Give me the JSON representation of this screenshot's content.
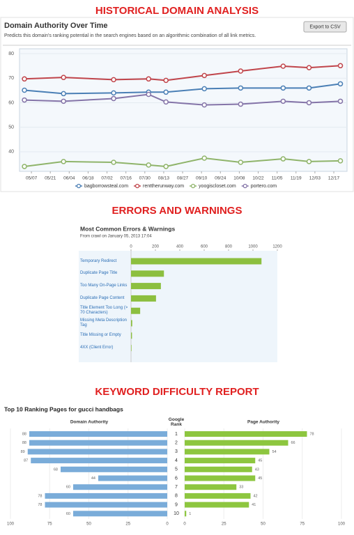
{
  "sections": [
    "HISTORICAL DOMAIN ANALYSIS",
    "ERRORS AND WARNINGS",
    "KEYWORD DIFFICULTY REPORT"
  ],
  "export_button": "Export to CSV",
  "chart_data": [
    {
      "type": "line",
      "title": "Domain Authority Over Time",
      "subtitle": "Predicts this domain's ranking potential in the search engines based on an algorithmic combination of all link metrics.",
      "x": [
        -0.37,
        1.7,
        4.35,
        6.2,
        7.12,
        9.15,
        11.07,
        13.32,
        14.69,
        16.35
      ],
      "xlim": [
        -0.63,
        16.7
      ],
      "xticks": [
        {
          "value": 0,
          "label": "05/07"
        },
        {
          "value": 1,
          "label": "05/21"
        },
        {
          "value": 2,
          "label": "06/04"
        },
        {
          "value": 3,
          "label": "06/18"
        },
        {
          "value": 4,
          "label": "07/02"
        },
        {
          "value": 5,
          "label": "07/16"
        },
        {
          "value": 6,
          "label": "07/30"
        },
        {
          "value": 7,
          "label": "08/13"
        },
        {
          "value": 8,
          "label": "08/27"
        },
        {
          "value": 9,
          "label": "09/10"
        },
        {
          "value": 10,
          "label": "09/24"
        },
        {
          "value": 11,
          "label": "10/08"
        },
        {
          "value": 12,
          "label": "10/22"
        },
        {
          "value": 13,
          "label": "11/05"
        },
        {
          "value": 14,
          "label": "11/19"
        },
        {
          "value": 15,
          "label": "12/03"
        },
        {
          "value": 16,
          "label": "12/17"
        }
      ],
      "ylim": [
        32,
        82
      ],
      "yticks": [
        40,
        50,
        60,
        70,
        80
      ],
      "grid": true,
      "legend": "bottom",
      "series": [
        {
          "name": "bagborrowsteal.com",
          "color": "#4a7fb5",
          "values": [
            65.1,
            63.7,
            64.0,
            64.3,
            64.3,
            65.7,
            66.0,
            66.0,
            66.0,
            67.7
          ]
        },
        {
          "name": "renttherunway.com",
          "color": "#c0444a",
          "values": [
            69.7,
            70.3,
            69.4,
            69.7,
            69.1,
            71.1,
            72.9,
            74.9,
            74.3,
            75.1
          ]
        },
        {
          "name": "yoogiscloset.com",
          "color": "#8fb46a",
          "values": [
            34.0,
            36.0,
            35.7,
            34.6,
            34.0,
            37.4,
            35.7,
            37.1,
            36.0,
            36.3
          ]
        },
        {
          "name": "portero.com",
          "color": "#8474a8",
          "values": [
            61.1,
            60.6,
            61.7,
            63.4,
            60.3,
            59.1,
            59.4,
            60.6,
            60.0,
            60.6
          ]
        }
      ]
    },
    {
      "type": "hbar",
      "title": "Most Common Errors & Warnings",
      "subtitle": "From crawl on January 05, 2013 17:04",
      "categories": [
        "Temporary Redirect",
        "Duplicate Page Title",
        "Too Many On-Page Links",
        "Duplicate Page Content",
        "Title Element Too Long (> 70 Characters)",
        "Missing Meta Description Tag",
        "Title Missing or Empty",
        "4XX (Client Error)"
      ],
      "values": [
        1070,
        270,
        245,
        205,
        75,
        10,
        8,
        4
      ],
      "color": "#8cbf3f",
      "xlim": [
        0,
        1200
      ],
      "xticks": [
        0,
        200,
        400,
        600,
        800,
        1000,
        1200
      ]
    },
    {
      "type": "butterfly",
      "title": "Top 10 Ranking Pages for gucci handbags",
      "category_label": "Google Rank",
      "categories": [
        "1",
        "2",
        "3",
        "4",
        "5",
        "6",
        "7",
        "8",
        "9",
        "10"
      ],
      "xlim": [
        0,
        100
      ],
      "xticks": [
        0,
        25,
        50,
        75,
        100
      ],
      "series": [
        {
          "name": "Domain Authority",
          "color": "#7aacd9",
          "values": [
            88,
            88,
            89,
            87,
            68,
            44,
            60,
            78,
            78,
            60
          ]
        },
        {
          "name": "Page Authority",
          "color": "#8dc63f",
          "values": [
            78,
            66,
            54,
            45,
            43,
            45,
            33,
            42,
            41,
            1
          ]
        }
      ]
    }
  ]
}
